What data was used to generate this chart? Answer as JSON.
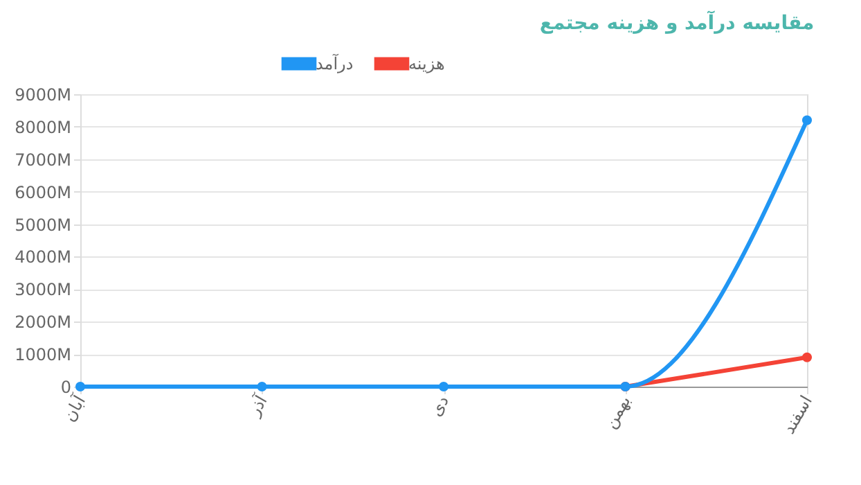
{
  "chart_data": {
    "type": "line",
    "title": "مقایسه درآمد و هزینه مجتمع",
    "categories": [
      "آبان",
      "آذر",
      "دی",
      "بهمن",
      "اسفند"
    ],
    "series": [
      {
        "name": "درآمد",
        "color": "#2196f3",
        "values": [
          0,
          0,
          0,
          0,
          8200
        ]
      },
      {
        "name": "هزینه",
        "color": "#f44336",
        "values": [
          null,
          null,
          null,
          0,
          900
        ]
      }
    ],
    "ylim": [
      0,
      9000
    ],
    "yticks": [
      0,
      {
        "value": 1000,
        "label": "1000M"
      },
      {
        "value": 2000,
        "label": "2000M"
      },
      {
        "value": 3000,
        "label": "3000M"
      },
      {
        "value": 4000,
        "label": "4000M"
      },
      {
        "value": 5000,
        "label": "5000M"
      },
      {
        "value": 6000,
        "label": "6000M"
      },
      {
        "value": 7000,
        "label": "7000M"
      },
      {
        "value": 8000,
        "label": "8000M"
      },
      {
        "value": 9000,
        "label": "9000M"
      }
    ],
    "grid": "y",
    "legend": "top",
    "marker": "circle",
    "line_style": "solid"
  }
}
